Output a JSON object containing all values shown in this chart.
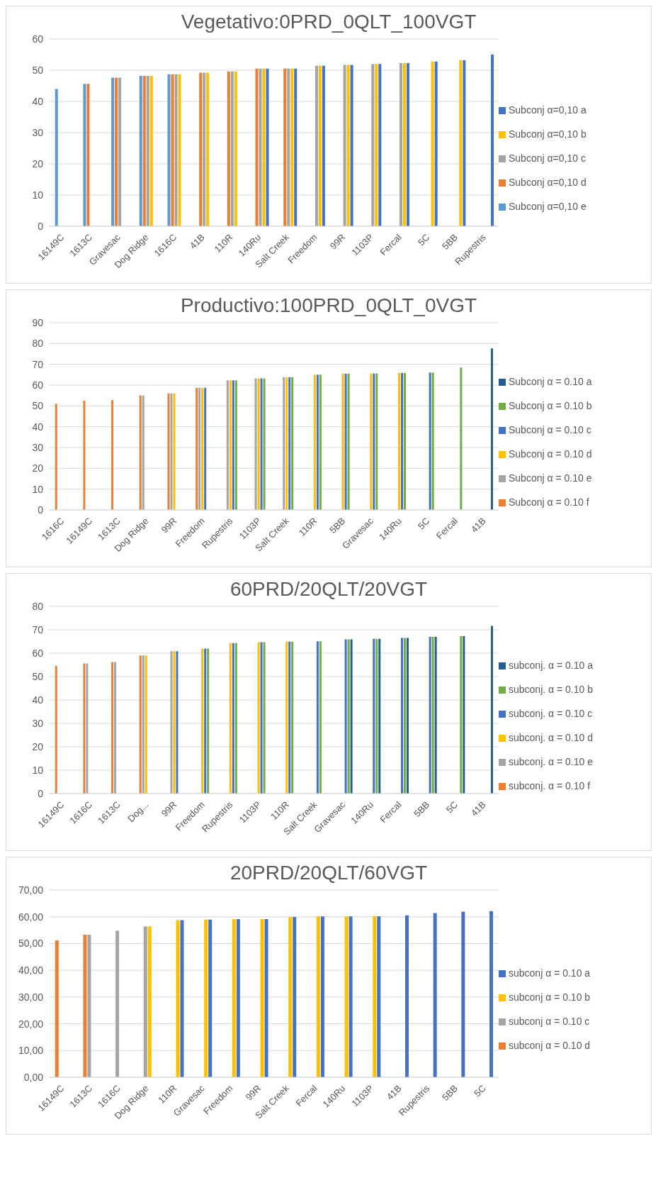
{
  "chart_data": [
    {
      "type": "bar",
      "title": "Vegetativo:0PRD_0QLT_100VGT",
      "categories": [
        "16149C",
        "1613C",
        "Gravesac",
        "Dog Ridge",
        "1616C",
        "41B",
        "110R",
        "140Ru",
        "Salt Creek",
        "Freedom",
        "99R",
        "1103P",
        "Fercal",
        "5C",
        "5BB",
        "Rupestris"
      ],
      "ylim": [
        0,
        60
      ],
      "yticks": [
        0,
        10,
        20,
        30,
        40,
        50,
        60
      ],
      "grid": "y",
      "legend": "right",
      "series": [
        {
          "name": "Subconj α=0,10 e",
          "color": "#5b9bd5",
          "values": [
            44,
            45.6,
            47.6,
            48.2,
            48.7,
            null,
            null,
            null,
            null,
            null,
            null,
            null,
            null,
            null,
            null,
            null
          ]
        },
        {
          "name": "Subconj α=0,10 d",
          "color": "#ed7d31",
          "values": [
            null,
            45.6,
            47.6,
            48.2,
            48.7,
            49.2,
            49.6,
            50.5,
            50.5,
            null,
            null,
            null,
            null,
            null,
            null,
            null
          ]
        },
        {
          "name": "Subconj α=0,10 c",
          "color": "#a5a5a5",
          "values": [
            null,
            null,
            47.6,
            48.2,
            48.7,
            49.2,
            49.6,
            50.5,
            50.5,
            51.4,
            51.7,
            52,
            52.3,
            null,
            null,
            null
          ]
        },
        {
          "name": "Subconj α=0,10 b",
          "color": "#ffc000",
          "values": [
            null,
            null,
            null,
            48.2,
            48.7,
            49.2,
            49.6,
            50.5,
            50.5,
            51.4,
            51.7,
            52,
            52.3,
            52.8,
            53.2,
            null
          ]
        },
        {
          "name": "Subconj α=0,10 a",
          "color": "#4472c4",
          "values": [
            null,
            null,
            null,
            null,
            null,
            null,
            null,
            50.5,
            50.5,
            51.4,
            51.7,
            52,
            52.3,
            52.8,
            53.2,
            55
          ]
        }
      ]
    },
    {
      "type": "bar",
      "title": "Productivo:100PRD_0QLT_0VGT",
      "categories": [
        "1616C",
        "16149C",
        "1613C",
        "Dog Ridge",
        "99R",
        "Freedom",
        "Rupestris",
        "1103P",
        "Salt Creek",
        "110R",
        "5BB",
        "Gravesac",
        "140Ru",
        "5C",
        "Fercal",
        "41B"
      ],
      "ylim": [
        0,
        90
      ],
      "yticks": [
        0,
        10,
        20,
        30,
        40,
        50,
        60,
        70,
        80,
        90
      ],
      "grid": "y",
      "legend": "right",
      "series": [
        {
          "name": "Subconj α = 0.10 f",
          "color": "#ed7d31",
          "values": [
            51,
            52.5,
            52.8,
            55,
            56,
            58.7,
            null,
            null,
            null,
            null,
            null,
            null,
            null,
            null,
            null,
            null
          ]
        },
        {
          "name": "Subconj α = 0.10 e",
          "color": "#a5a5a5",
          "values": [
            null,
            null,
            null,
            55,
            56,
            58.7,
            62.3,
            63.2,
            63.8,
            null,
            null,
            null,
            null,
            null,
            null,
            null
          ]
        },
        {
          "name": "Subconj α = 0.10 d",
          "color": "#ffc000",
          "values": [
            null,
            null,
            null,
            null,
            56,
            58.7,
            62.3,
            63.2,
            63.8,
            65,
            65.5,
            65.6,
            65.8,
            null,
            null,
            null
          ]
        },
        {
          "name": "Subconj α = 0.10 c",
          "color": "#4472c4",
          "values": [
            null,
            null,
            null,
            null,
            null,
            58.7,
            62.3,
            63.2,
            63.8,
            65,
            65.5,
            65.6,
            65.8,
            66,
            null,
            null
          ]
        },
        {
          "name": "Subconj α = 0.10 b",
          "color": "#70ad47",
          "values": [
            null,
            null,
            null,
            null,
            null,
            null,
            62.3,
            63.2,
            63.8,
            65,
            65.5,
            65.6,
            65.8,
            66,
            68.5,
            null
          ]
        },
        {
          "name": "Subconj α = 0.10 a",
          "color": "#255e91",
          "values": [
            null,
            null,
            null,
            null,
            null,
            null,
            null,
            null,
            null,
            null,
            null,
            null,
            null,
            null,
            null,
            77.6
          ]
        }
      ]
    },
    {
      "type": "bar",
      "title": "60PRD/20QLT/20VGT",
      "categories": [
        "16149C",
        "1616C",
        "1613C",
        "Dog...",
        "99R",
        "Freedom",
        "Rupestris",
        "1103P",
        "110R",
        "Salt Creek",
        "Gravesac",
        "140Ru",
        "Fercal",
        "5BB",
        "5C",
        "41B"
      ],
      "ylim": [
        0,
        80
      ],
      "yticks": [
        0,
        10,
        20,
        30,
        40,
        50,
        60,
        70,
        80
      ],
      "grid": "y",
      "legend": "right",
      "series": [
        {
          "name": "subconj. α = 0.10 f",
          "color": "#ed7d31",
          "values": [
            54.6,
            55.6,
            56.2,
            59,
            null,
            null,
            null,
            null,
            null,
            null,
            null,
            null,
            null,
            null,
            null,
            null
          ]
        },
        {
          "name": "subconj. α = 0.10 e",
          "color": "#a5a5a5",
          "values": [
            null,
            55.6,
            56.2,
            59,
            60.8,
            null,
            null,
            null,
            null,
            null,
            null,
            null,
            null,
            null,
            null,
            null
          ]
        },
        {
          "name": "subconj. α = 0.10 d",
          "color": "#ffc000",
          "values": [
            null,
            null,
            null,
            59,
            60.8,
            62,
            64.3,
            64.7,
            64.9,
            null,
            null,
            null,
            null,
            null,
            null,
            null
          ]
        },
        {
          "name": "subconj. α = 0.10 c",
          "color": "#4472c4",
          "values": [
            null,
            null,
            null,
            null,
            60.8,
            62,
            64.3,
            64.7,
            64.9,
            65.1,
            65.9,
            66.1,
            66.5,
            67,
            null,
            null
          ]
        },
        {
          "name": "subconj. α = 0.10 b",
          "color": "#70ad47",
          "values": [
            null,
            null,
            null,
            null,
            null,
            62,
            64.3,
            64.7,
            64.9,
            65.1,
            65.9,
            66.1,
            66.5,
            67,
            67.3,
            null
          ]
        },
        {
          "name": "subconj. α = 0.10 a",
          "color": "#255e91",
          "values": [
            null,
            null,
            null,
            null,
            null,
            null,
            null,
            null,
            null,
            null,
            65.9,
            66.1,
            66.5,
            67,
            67.3,
            71.7
          ]
        }
      ]
    },
    {
      "type": "bar",
      "title": "20PRD/20QLT/60VGT",
      "categories": [
        "16149C",
        "1613C",
        "1616C",
        "Dog Ridge",
        "110R",
        "Gravesac",
        "Freedom",
        "99R",
        "Salt Creek",
        "Fercal",
        "140Ru",
        "1103P",
        "41B",
        "Rupestris",
        "5BB",
        "5C"
      ],
      "ylim": [
        0,
        70
      ],
      "yticks": [
        {
          "value": 0,
          "label": "0,00"
        },
        {
          "value": 10,
          "label": "10,00"
        },
        {
          "value": 20,
          "label": "20,00"
        },
        {
          "value": 30,
          "label": "30,00"
        },
        {
          "value": 40,
          "label": "40,00"
        },
        {
          "value": 50,
          "label": "50,00"
        },
        {
          "value": 60,
          "label": "60,00"
        },
        {
          "value": 70,
          "label": "70,00"
        }
      ],
      "grid": "y",
      "legend": "right",
      "series": [
        {
          "name": "subconj  α = 0.10 d",
          "color": "#ed7d31",
          "values": [
            51.2,
            53.3,
            null,
            null,
            null,
            null,
            null,
            null,
            null,
            null,
            null,
            null,
            null,
            null,
            null,
            null
          ]
        },
        {
          "name": "subconj  α = 0.10 c",
          "color": "#a5a5a5",
          "values": [
            null,
            53.3,
            54.8,
            56.4,
            null,
            null,
            null,
            null,
            null,
            null,
            null,
            null,
            null,
            null,
            null,
            null
          ]
        },
        {
          "name": "subconj  α = 0.10 b",
          "color": "#ffc000",
          "values": [
            null,
            null,
            null,
            56.4,
            58.7,
            58.9,
            59.1,
            59.1,
            59.9,
            60.1,
            60.1,
            60.2,
            null,
            null,
            null,
            null
          ]
        },
        {
          "name": "subconj  α = 0.10 a",
          "color": "#4472c4",
          "values": [
            null,
            null,
            null,
            null,
            58.7,
            58.9,
            59.1,
            59.1,
            59.9,
            60.1,
            60.1,
            60.2,
            60.5,
            61.4,
            61.9,
            62.1
          ]
        }
      ]
    }
  ]
}
